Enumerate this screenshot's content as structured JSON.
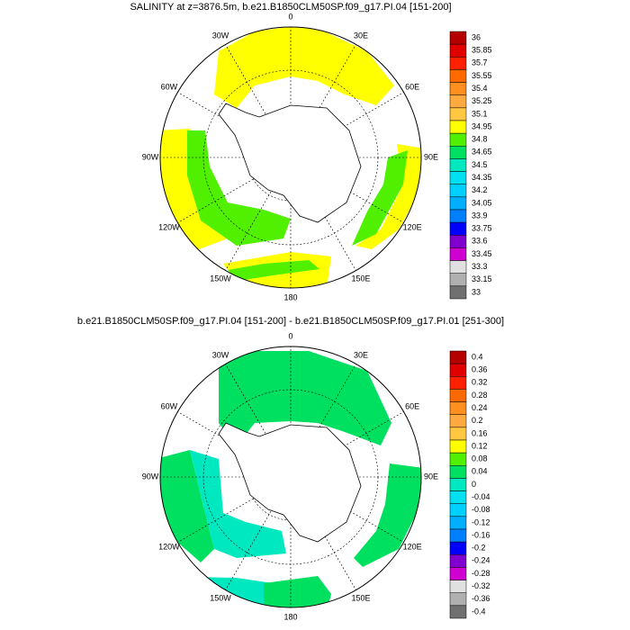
{
  "panels": [
    {
      "title": "SALINITY at z=3876.5m, b.e21.B1850CLM50SP.f09_g17.PI.04 [151-200]",
      "lon_labels": [
        "0",
        "30E",
        "60E",
        "90E",
        "120E",
        "150E",
        "180",
        "150W",
        "120W",
        "90W",
        "60W",
        "30W"
      ],
      "colorbar": {
        "levels": [
          36,
          35.85,
          35.7,
          35.55,
          35.4,
          35.25,
          35.1,
          34.95,
          34.8,
          34.65,
          34.5,
          34.35,
          34.2,
          34.05,
          33.9,
          33.75,
          33.6,
          33.45,
          33.3,
          33.15,
          33
        ],
        "colors": [
          "#b40000",
          "#e00000",
          "#ff2000",
          "#ff6a00",
          "#ff9020",
          "#ffaa40",
          "#ffc840",
          "#ffff00",
          "#50f000",
          "#00e060",
          "#00e8c0",
          "#00e0f0",
          "#00d0ff",
          "#00b0ff",
          "#0080ff",
          "#0000ff",
          "#8000d0",
          "#d000d0",
          "#e0e0e0",
          "#b0b0b0",
          "#707070"
        ]
      }
    },
    {
      "title": "b.e21.B1850CLM50SP.f09_g17.PI.04 [151-200] - b.e21.B1850CLM50SP.f09_g17.PI.01 [251-300]",
      "lon_labels": [
        "0",
        "30E",
        "60E",
        "90E",
        "120E",
        "150E",
        "180",
        "150W",
        "120W",
        "90W",
        "60W",
        "30W"
      ],
      "colorbar": {
        "levels": [
          0.4,
          0.36,
          0.32,
          0.28,
          0.24,
          0.2,
          0.16,
          0.12,
          0.08,
          0.04,
          0,
          -0.04,
          -0.08,
          -0.12,
          -0.16,
          -0.2,
          -0.24,
          -0.28,
          -0.32,
          -0.36,
          -0.4
        ],
        "colors": [
          "#b40000",
          "#e00000",
          "#ff2000",
          "#ff6a00",
          "#ff9020",
          "#ffaa40",
          "#ffc840",
          "#ffff00",
          "#50f000",
          "#00e060",
          "#00e8c0",
          "#00e0f0",
          "#00d0ff",
          "#00b0ff",
          "#0080ff",
          "#0000ff",
          "#8000d0",
          "#d000d0",
          "#e0e0e0",
          "#b0b0b0",
          "#707070"
        ]
      }
    }
  ]
}
